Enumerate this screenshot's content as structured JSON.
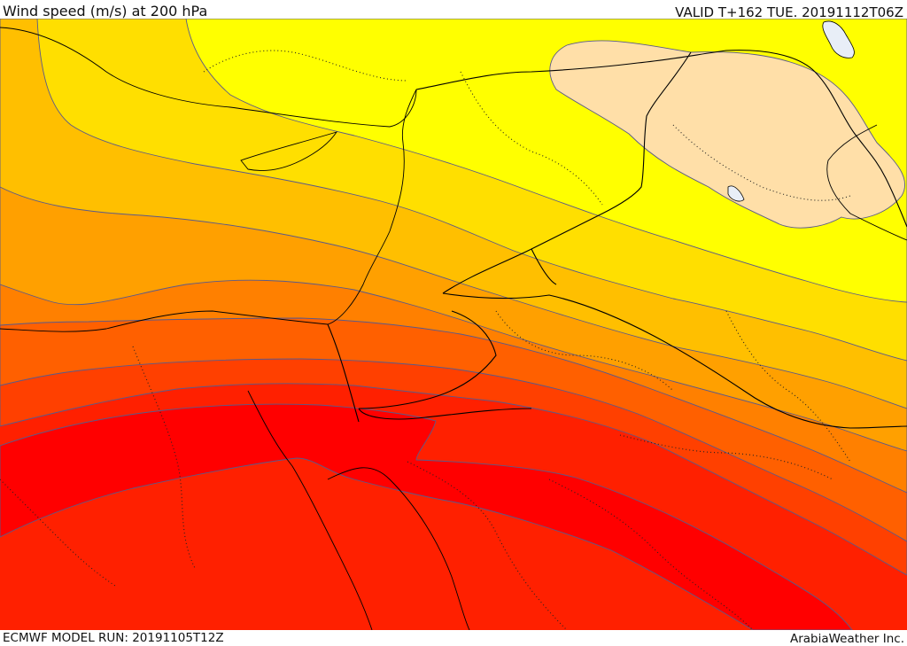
{
  "header": {
    "title": "Wind speed (m/s) at 200 hPa",
    "valid": "VALID T+162 TUE. 20191112T06Z"
  },
  "footer": {
    "model_run": "ECMWF MODEL RUN: 20191105T12Z",
    "credit": "ArabiaWeather Inc."
  },
  "colors": {
    "level_1": "#ffdfa8",
    "level_2": "#ffff00",
    "level_3": "#ffdf00",
    "level_4": "#ffbf00",
    "level_5": "#ffa000",
    "level_6": "#ff8000",
    "level_7": "#ff6000",
    "level_8": "#ff4000",
    "level_9": "#ff2000",
    "level_10": "#ff0000",
    "lake": "#e8eef7"
  }
}
